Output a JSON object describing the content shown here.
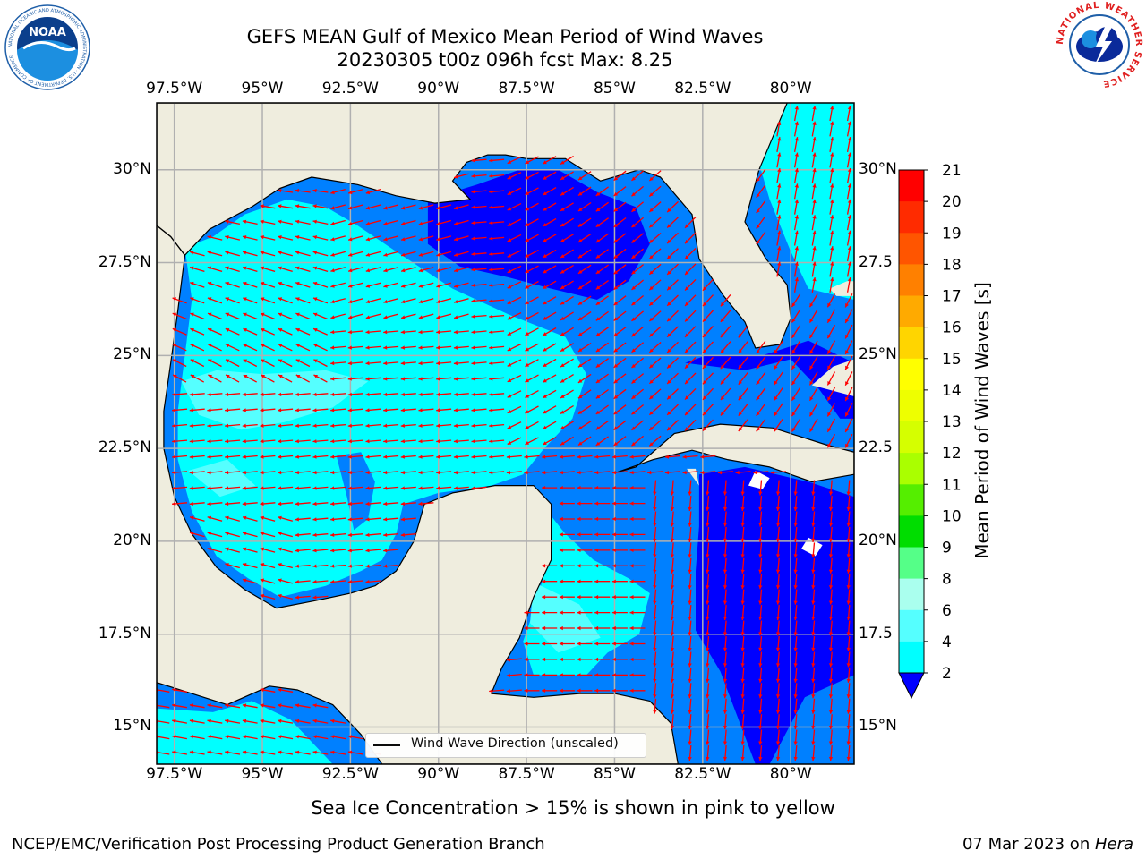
{
  "title": {
    "line1": "GEFS MEAN Gulf of Mexico Mean Period of Wind Waves",
    "line2": "20230305 t00z 096h fcst   Max: 8.25"
  },
  "logos": {
    "noaa": {
      "center_text": "NOAA",
      "ring_text": "NATIONAL OCEANIC AND ATMOSPHERIC ADMINISTRATION · U.S. DEPARTMENT OF COMMERCE",
      "color": "#1f5fa8"
    },
    "nws": {
      "ring_text": "NATIONAL WEATHER SERVICE",
      "color": "#e02020"
    }
  },
  "map": {
    "lon_ticks_top": [
      "97.5°W",
      "95°W",
      "92.5°W",
      "90°W",
      "87.5°W",
      "85°W",
      "82.5°W",
      "80°W"
    ],
    "lon_ticks_bottom": [
      "97.5°W",
      "95°W",
      "92.5°W",
      "90°W",
      "87.5°W",
      "85°W",
      "82.5°W",
      "80°W"
    ],
    "lat_ticks_left": [
      "30°N",
      "27.5°N",
      "25°N",
      "22.5°N",
      "20°N",
      "17.5°N",
      "15°N"
    ],
    "lat_ticks_right": [
      "30°N",
      "27.5",
      "25°N",
      "22.5",
      "20°N",
      "17.5",
      "15°N"
    ],
    "lon_range": [
      -98,
      -78.2
    ],
    "lat_range": [
      14,
      31.8
    ],
    "land_color": "#efedde",
    "grid_color": "#b0b0b0",
    "arrow_color": "#ff0000",
    "legend_label": "Wind Wave Direction (unscaled)"
  },
  "colorbar": {
    "label": "Mean Period of Wind Waves [s]",
    "ticks": [
      "21",
      "20",
      "19",
      "18",
      "17",
      "16",
      "15",
      "14",
      "13",
      "12",
      "11",
      "10",
      "9",
      "8",
      "6",
      "4",
      "2"
    ],
    "colors": [
      "#ff0000",
      "#ff2b00",
      "#ff5500",
      "#ff8000",
      "#ffaa00",
      "#ffd500",
      "#ffff00",
      "#eeff00",
      "#d5ff00",
      "#aaff00",
      "#55ee00",
      "#00dd00",
      "#55ff88",
      "#aaffee",
      "#55ffff",
      "#00ffff",
      "#0080ff",
      "#0000ff"
    ]
  },
  "chart_data": {
    "type": "heatmap",
    "title": "GEFS MEAN Gulf of Mexico Mean Period of Wind Waves",
    "subtitle": "20230305 t00z 096h fcst   Max: 8.25",
    "variable": "Mean Period of Wind Waves [s]",
    "max_value": 8.25,
    "levels": [
      2,
      4,
      6,
      8,
      9,
      10,
      11,
      12,
      13,
      14,
      15,
      16,
      17,
      18,
      19,
      20,
      21
    ],
    "level_colors": {
      "<2": "#0000ff",
      "2-4": "#0080ff",
      "4-6": "#00ffff",
      "6-8": "#55ffff"
    },
    "regions_approx": [
      {
        "region": "western and central Gulf",
        "period_s": "4-8"
      },
      {
        "region": "northeastern Gulf",
        "period_s": "<2 to 4"
      },
      {
        "region": "Straits of Florida",
        "period_s": "<2 to 4"
      },
      {
        "region": "Atlantic off east Florida",
        "period_s": "4-6"
      },
      {
        "region": "Yucatan Channel / western Caribbean",
        "period_s": "4-6"
      },
      {
        "region": "Caribbean south of Cuba",
        "period_s": "<2"
      },
      {
        "region": "Pacific off southern Mexico",
        "period_s": "2-6"
      }
    ],
    "wind_wave_direction": {
      "western Gulf": "toward northwest",
      "central/southern Gulf": "toward west",
      "eastern Gulf": "toward southwest",
      "Caribbean": "toward south",
      "Atlantic off Florida": "toward north-northeast"
    }
  },
  "footer": {
    "ice_note": "Sea Ice Concentration > 15% is shown in pink to yellow",
    "branch": "NCEP/EMC/Verification Post Processing Product Generation Branch",
    "date": "07 Mar 2023 on ",
    "host": "Hera"
  }
}
